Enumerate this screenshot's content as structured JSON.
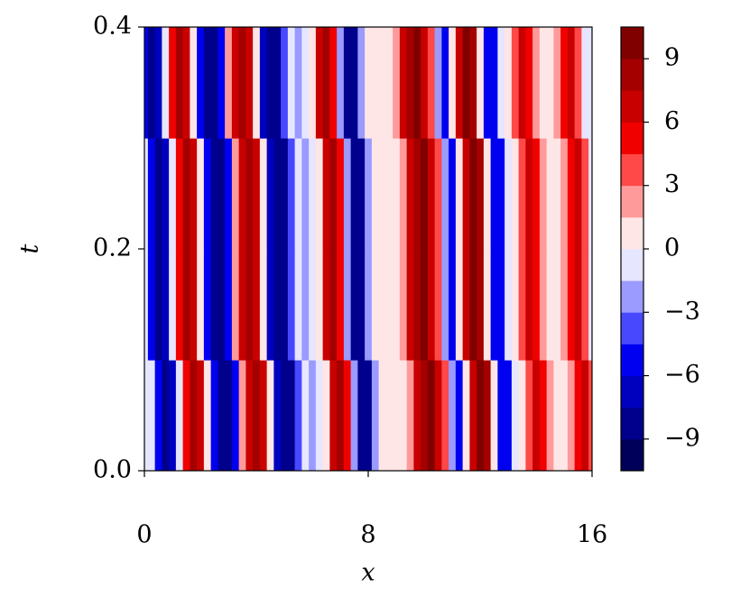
{
  "chart_data": {
    "type": "contourf",
    "x_label": "x",
    "y_label": "t",
    "xlim": [
      0,
      16
    ],
    "ylim": [
      0,
      0.4
    ],
    "xticks": [
      0,
      8,
      16
    ],
    "yticks": [
      {
        "value": 0,
        "label": "0.0"
      },
      {
        "value": 0.2,
        "label": "0.2"
      },
      {
        "value": 0.4,
        "label": "0.4"
      }
    ],
    "x": [
      0,
      0.25,
      0.5,
      0.75,
      1,
      1.25,
      1.5,
      1.75,
      2,
      2.25,
      2.5,
      2.75,
      3,
      3.25,
      3.5,
      3.75,
      4,
      4.25,
      4.5,
      4.75,
      5,
      5.25,
      5.5,
      5.75,
      6,
      6.25,
      6.5,
      6.75,
      7,
      7.25,
      7.5,
      7.75,
      8,
      8.25,
      8.5,
      8.75,
      9,
      9.25,
      9.5,
      9.75,
      10,
      10.25,
      10.5,
      10.75,
      11,
      11.25,
      11.5,
      11.75,
      12,
      12.25,
      12.5,
      12.75,
      13,
      13.25,
      13.5,
      13.75,
      14,
      14.25,
      14.5,
      14.75,
      15,
      15.25,
      15.5,
      15.75,
      16
    ],
    "y": [
      0.05,
      0.15,
      0.25,
      0.35
    ],
    "z": [
      [
        -1,
        -1,
        -5,
        -9,
        -7,
        -1,
        5,
        8,
        6,
        0,
        -6,
        -9,
        -9,
        -5,
        2,
        7,
        8,
        6,
        0,
        -7,
        -9,
        -9,
        -4,
        -1,
        -2,
        -1,
        1,
        7,
        8,
        5,
        -3,
        -8,
        -8,
        -2,
        1,
        1,
        0.5,
        1,
        2,
        6,
        8,
        9,
        7,
        3,
        -2,
        -5,
        0,
        7,
        9,
        8,
        1,
        -5,
        -5,
        -1,
        1,
        4,
        6,
        5,
        2,
        1,
        1,
        2,
        5,
        6,
        3
      ],
      [
        -1,
        -5,
        -9,
        -7,
        -1,
        5,
        8,
        6,
        0,
        -6,
        -9,
        -9,
        -5,
        2,
        7,
        8,
        6,
        0,
        -7,
        -9,
        -9,
        -4,
        -1,
        -2,
        -1,
        1,
        7,
        8,
        5,
        -3,
        -8,
        -8,
        -2,
        1,
        1,
        0.5,
        1,
        2,
        6,
        8,
        9,
        7,
        3,
        -2,
        -5,
        0,
        7,
        9,
        8,
        1,
        -5,
        -5,
        -1,
        1,
        4,
        6,
        5,
        2,
        1,
        1,
        2,
        5,
        6,
        3,
        -1
      ],
      [
        -1,
        -5,
        -9,
        -7,
        -1,
        5,
        8,
        6,
        0,
        -6,
        -9,
        -9,
        -5,
        2,
        7,
        8,
        6,
        0,
        -7,
        -9,
        -9,
        -4,
        -1,
        -2,
        -1,
        1,
        7,
        8,
        5,
        -3,
        -8,
        -8,
        -2,
        1,
        1,
        0.5,
        1,
        2,
        6,
        8,
        9,
        7,
        3,
        -2,
        -5,
        0,
        7,
        9,
        8,
        1,
        -5,
        -5,
        -1,
        1,
        4,
        6,
        5,
        2,
        1,
        1,
        2,
        5,
        6,
        3,
        -1
      ],
      [
        -5,
        -9,
        -7,
        -1,
        5,
        8,
        6,
        0,
        -6,
        -9,
        -9,
        -5,
        2,
        7,
        8,
        6,
        0,
        -7,
        -9,
        -9,
        -4,
        -1,
        -2,
        -1,
        1,
        7,
        8,
        5,
        -3,
        -8,
        -8,
        -2,
        1,
        1,
        0.5,
        1,
        2,
        6,
        8,
        9,
        7,
        3,
        -2,
        -5,
        0,
        7,
        9,
        8,
        1,
        -5,
        -5,
        -1,
        1,
        4,
        6,
        5,
        2,
        1,
        1,
        2,
        5,
        6,
        3,
        -1,
        -1
      ]
    ],
    "levels": [
      -10.5,
      -9,
      -7.5,
      -6,
      -4.5,
      -3,
      -1.5,
      0,
      1.5,
      3,
      4.5,
      6,
      7.5,
      9,
      10.5
    ],
    "colors": [
      "#00005a",
      "#00008c",
      "#0000bf",
      "#0000f1",
      "#4848ff",
      "#9a9aff",
      "#e6e6ff",
      "#ffe6e6",
      "#ff9a9a",
      "#ff4848",
      "#f10000",
      "#c80000",
      "#a40000",
      "#800000"
    ],
    "colorbar_lim": [
      -10.5,
      10.5
    ],
    "colorbar_ticks": [
      {
        "value": -9,
        "label": "−9"
      },
      {
        "value": -6,
        "label": "−6"
      },
      {
        "value": -3,
        "label": "−3"
      },
      0,
      3,
      6,
      9
    ]
  }
}
